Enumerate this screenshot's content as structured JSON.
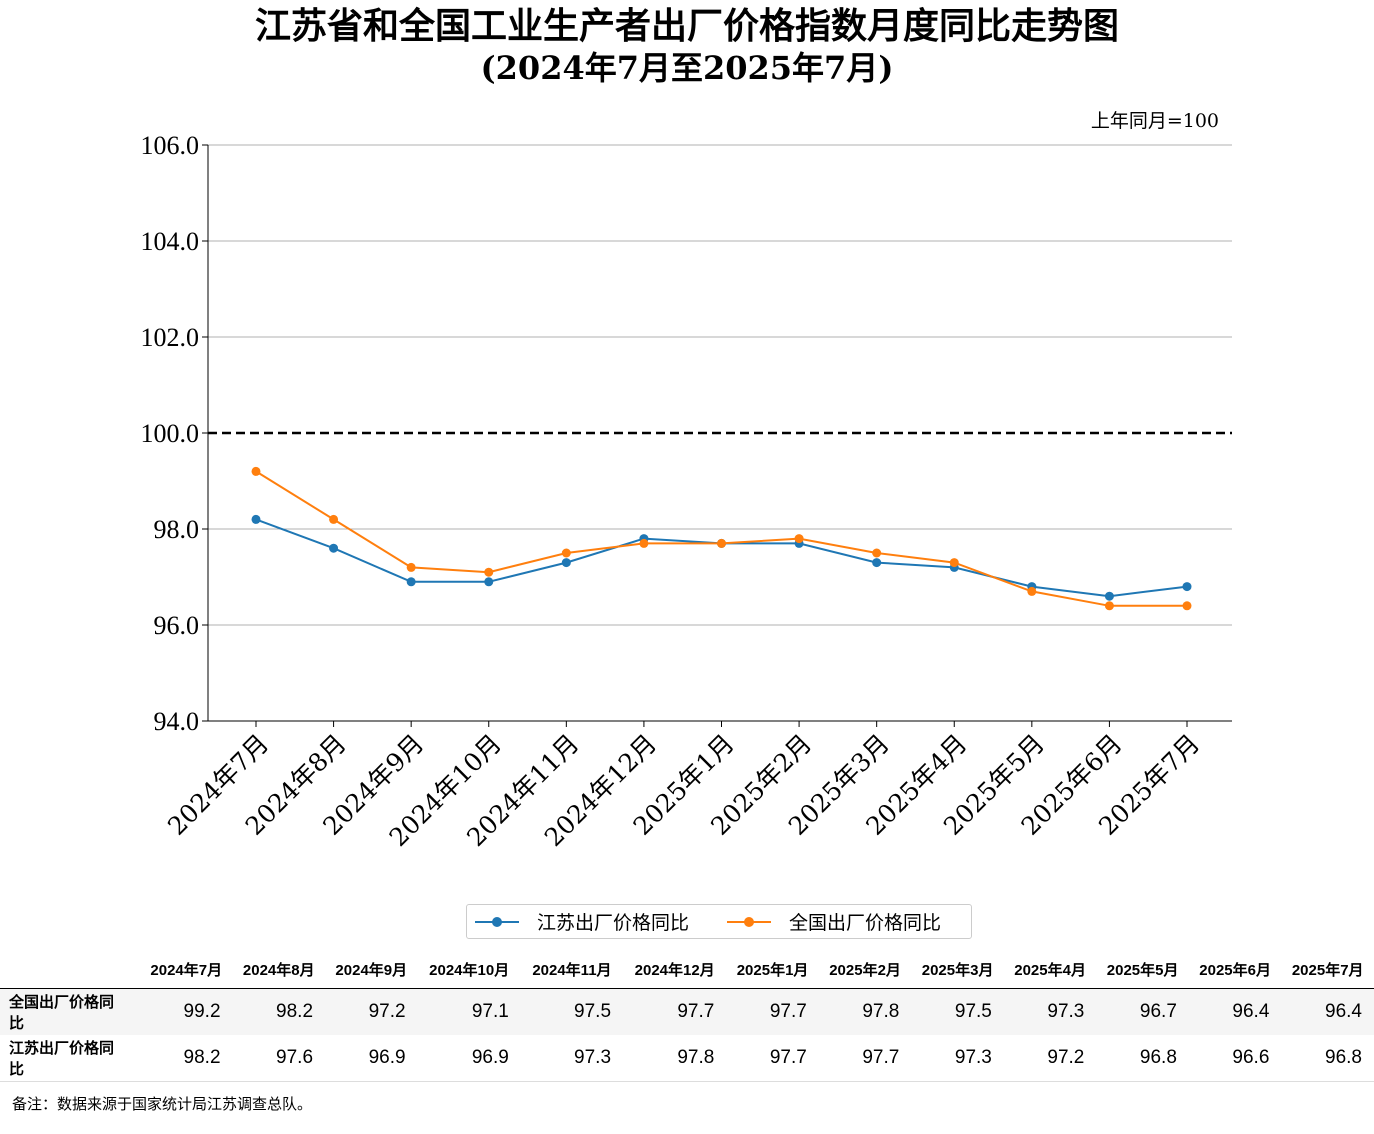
{
  "title_line1": "江苏省和全国工业生产者出厂价格指数月度同比走势图",
  "title_line2": "(2024年7月至2025年7月)",
  "unit_note": "上年同月=100",
  "chart_data": {
    "type": "line",
    "categories": [
      "2024年7月",
      "2024年8月",
      "2024年9月",
      "2024年10月",
      "2024年11月",
      "2024年12月",
      "2025年1月",
      "2025年2月",
      "2025年3月",
      "2025年4月",
      "2025年5月",
      "2025年6月",
      "2025年7月"
    ],
    "ylim": [
      94.0,
      106.0
    ],
    "yticks": [
      "94.0",
      "96.0",
      "98.0",
      "100.0",
      "102.0",
      "104.0",
      "106.0"
    ],
    "reference_line": 100.0,
    "grid": "horizontal",
    "legend_position": "bottom-center",
    "series": [
      {
        "name": "江苏出厂价格同比",
        "color": "#1f77b4",
        "values": [
          98.2,
          97.6,
          96.9,
          96.9,
          97.3,
          97.8,
          97.7,
          97.7,
          97.3,
          97.2,
          96.8,
          96.6,
          96.8
        ]
      },
      {
        "name": "全国出厂价格同比",
        "color": "#ff7f0e",
        "values": [
          99.2,
          98.2,
          97.2,
          97.1,
          97.5,
          97.7,
          97.7,
          97.8,
          97.5,
          97.3,
          96.7,
          96.4,
          96.4
        ]
      }
    ]
  },
  "table": {
    "headers": [
      "",
      "2024年7月",
      "2024年8月",
      "2024年9月",
      "2024年10月",
      "2024年11月",
      "2024年12月",
      "2025年1月",
      "2025年2月",
      "2025年3月",
      "2025年4月",
      "2025年5月",
      "2025年6月",
      "2025年7月"
    ],
    "rows": [
      {
        "label": "全国出厂价格同比",
        "values": [
          "99.2",
          "98.2",
          "97.2",
          "97.1",
          "97.5",
          "97.7",
          "97.7",
          "97.8",
          "97.5",
          "97.3",
          "96.7",
          "96.4",
          "96.4"
        ]
      },
      {
        "label": "江苏出厂价格同比",
        "values": [
          "98.2",
          "97.6",
          "96.9",
          "96.9",
          "97.3",
          "97.8",
          "97.7",
          "97.7",
          "97.3",
          "97.2",
          "96.8",
          "96.6",
          "96.8"
        ]
      }
    ]
  },
  "note": "备注：数据来源于国家统计局江苏调查总队。"
}
